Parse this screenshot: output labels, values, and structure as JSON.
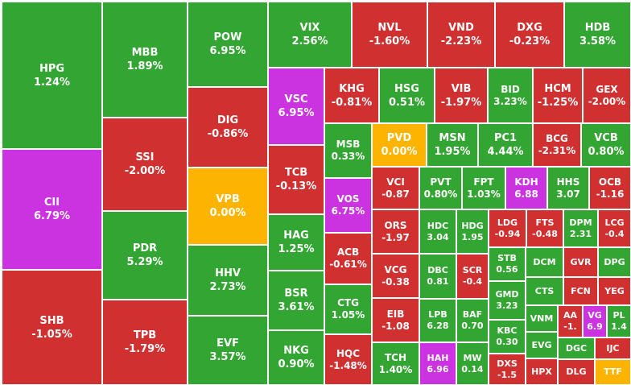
{
  "chart_data": {
    "type": "treemap",
    "colors": {
      "up": "#33a532",
      "down": "#d03030",
      "ceiling": "#cc33e0",
      "ref": "#fcb400"
    },
    "tiles": [
      {
        "ticker": "HPG",
        "change": "1.24%",
        "status": "up"
      },
      {
        "ticker": "CII",
        "change": "6.79%",
        "status": "ceiling"
      },
      {
        "ticker": "SHB",
        "change": "-1.05%",
        "status": "down"
      },
      {
        "ticker": "MBB",
        "change": "1.89%",
        "status": "up"
      },
      {
        "ticker": "SSI",
        "change": "-2.00%",
        "status": "down"
      },
      {
        "ticker": "PDR",
        "change": "5.29%",
        "status": "up"
      },
      {
        "ticker": "TPB",
        "change": "-1.79%",
        "status": "down"
      },
      {
        "ticker": "POW",
        "change": "6.95%",
        "status": "up"
      },
      {
        "ticker": "DIG",
        "change": "-0.86%",
        "status": "down"
      },
      {
        "ticker": "VPB",
        "change": "0.00%",
        "status": "ref"
      },
      {
        "ticker": "HHV",
        "change": "2.73%",
        "status": "up"
      },
      {
        "ticker": "EVF",
        "change": "3.57%",
        "status": "up"
      },
      {
        "ticker": "VIX",
        "change": "2.56%",
        "status": "up"
      },
      {
        "ticker": "NVL",
        "change": "-1.60%",
        "status": "down"
      },
      {
        "ticker": "VND",
        "change": "-2.23%",
        "status": "down"
      },
      {
        "ticker": "DXG",
        "change": "-0.23%",
        "status": "down"
      },
      {
        "ticker": "HDB",
        "change": "3.58%",
        "status": "up"
      },
      {
        "ticker": "VSC",
        "change": "6.95%",
        "status": "ceiling"
      },
      {
        "ticker": "TCB",
        "change": "-0.13%",
        "status": "down"
      },
      {
        "ticker": "HAG",
        "change": "1.25%",
        "status": "up"
      },
      {
        "ticker": "BSR",
        "change": "3.61%",
        "status": "up"
      },
      {
        "ticker": "NKG",
        "change": "0.90%",
        "status": "up"
      },
      {
        "ticker": "KHG",
        "change": "-0.81%",
        "status": "down"
      },
      {
        "ticker": "HSG",
        "change": "0.51%",
        "status": "up"
      },
      {
        "ticker": "VIB",
        "change": "-1.97%",
        "status": "down"
      },
      {
        "ticker": "BID",
        "change": "3.23%",
        "status": "up"
      },
      {
        "ticker": "HCM",
        "change": "-1.25%",
        "status": "down"
      },
      {
        "ticker": "GEX",
        "change": "-2.00%",
        "status": "down"
      },
      {
        "ticker": "MSB",
        "change": "0.33%",
        "status": "up"
      },
      {
        "ticker": "PVD",
        "change": "0.00%",
        "status": "ref"
      },
      {
        "ticker": "MSN",
        "change": "1.95%",
        "status": "up"
      },
      {
        "ticker": "PC1",
        "change": "4.44%",
        "status": "up"
      },
      {
        "ticker": "BCG",
        "change": "-2.31%",
        "status": "down"
      },
      {
        "ticker": "VCB",
        "change": "0.80%",
        "status": "up"
      },
      {
        "ticker": "VOS",
        "change": "6.75%",
        "status": "ceiling"
      },
      {
        "ticker": "ACB",
        "change": "-0.61%",
        "status": "down"
      },
      {
        "ticker": "CTG",
        "change": "1.05%",
        "status": "up"
      },
      {
        "ticker": "HQC",
        "change": "-1.48%",
        "status": "down"
      },
      {
        "ticker": "VCI",
        "change": "-0.87",
        "status": "down"
      },
      {
        "ticker": "PVT",
        "change": "0.80%",
        "status": "up"
      },
      {
        "ticker": "FPT",
        "change": "1.03%",
        "status": "up"
      },
      {
        "ticker": "KDH",
        "change": "6.88",
        "status": "ceiling"
      },
      {
        "ticker": "HHS",
        "change": "3.07",
        "status": "up"
      },
      {
        "ticker": "OCB",
        "change": "-1.16",
        "status": "down"
      },
      {
        "ticker": "ORS",
        "change": "-1.97",
        "status": "down"
      },
      {
        "ticker": "VCG",
        "change": "-0.38",
        "status": "down"
      },
      {
        "ticker": "EIB",
        "change": "-1.08",
        "status": "down"
      },
      {
        "ticker": "TCH",
        "change": "1.40%",
        "status": "up"
      },
      {
        "ticker": "HDC",
        "change": "3.04",
        "status": "up"
      },
      {
        "ticker": "HDG",
        "change": "1.95",
        "status": "up"
      },
      {
        "ticker": "DBC",
        "change": "0.81",
        "status": "up"
      },
      {
        "ticker": "SCR",
        "change": "-0.4",
        "status": "down"
      },
      {
        "ticker": "LPB",
        "change": "6.28",
        "status": "up"
      },
      {
        "ticker": "BAF",
        "change": "0.70",
        "status": "up"
      },
      {
        "ticker": "HAH",
        "change": "6.96",
        "status": "ceiling"
      },
      {
        "ticker": "MW",
        "change": "0.14",
        "status": "up"
      },
      {
        "ticker": "LDG",
        "change": "-0.94",
        "status": "down"
      },
      {
        "ticker": "FTS",
        "change": "-0.48",
        "status": "down"
      },
      {
        "ticker": "DPM",
        "change": "2.31",
        "status": "up"
      },
      {
        "ticker": "LCG",
        "change": "-0.4",
        "status": "down"
      },
      {
        "ticker": "STB",
        "change": "0.56",
        "status": "up"
      },
      {
        "ticker": "GMD",
        "change": "3.23",
        "status": "up"
      },
      {
        "ticker": "KBC",
        "change": "0.30",
        "status": "up"
      },
      {
        "ticker": "DXS",
        "change": "-1.5",
        "status": "down"
      },
      {
        "ticker": "DCM",
        "change": "",
        "status": "up"
      },
      {
        "ticker": "GVR",
        "change": "",
        "status": "down"
      },
      {
        "ticker": "DPG",
        "change": "",
        "status": "up"
      },
      {
        "ticker": "CTS",
        "change": "",
        "status": "up"
      },
      {
        "ticker": "FCN",
        "change": "",
        "status": "down"
      },
      {
        "ticker": "YEG",
        "change": "",
        "status": "down"
      },
      {
        "ticker": "VNM",
        "change": "",
        "status": "up"
      },
      {
        "ticker": "AA",
        "change": "-1.",
        "status": "down"
      },
      {
        "ticker": "VG",
        "change": "6.9",
        "status": "ceiling"
      },
      {
        "ticker": "PL",
        "change": "1.4",
        "status": "up"
      },
      {
        "ticker": "EVG",
        "change": "",
        "status": "up"
      },
      {
        "ticker": "DGC",
        "change": "",
        "status": "up"
      },
      {
        "ticker": "IJC",
        "change": "",
        "status": "down"
      },
      {
        "ticker": "HPX",
        "change": "",
        "status": "down"
      },
      {
        "ticker": "DLG",
        "change": "",
        "status": "down"
      },
      {
        "ticker": "TTF",
        "change": "",
        "status": "ref"
      }
    ]
  }
}
